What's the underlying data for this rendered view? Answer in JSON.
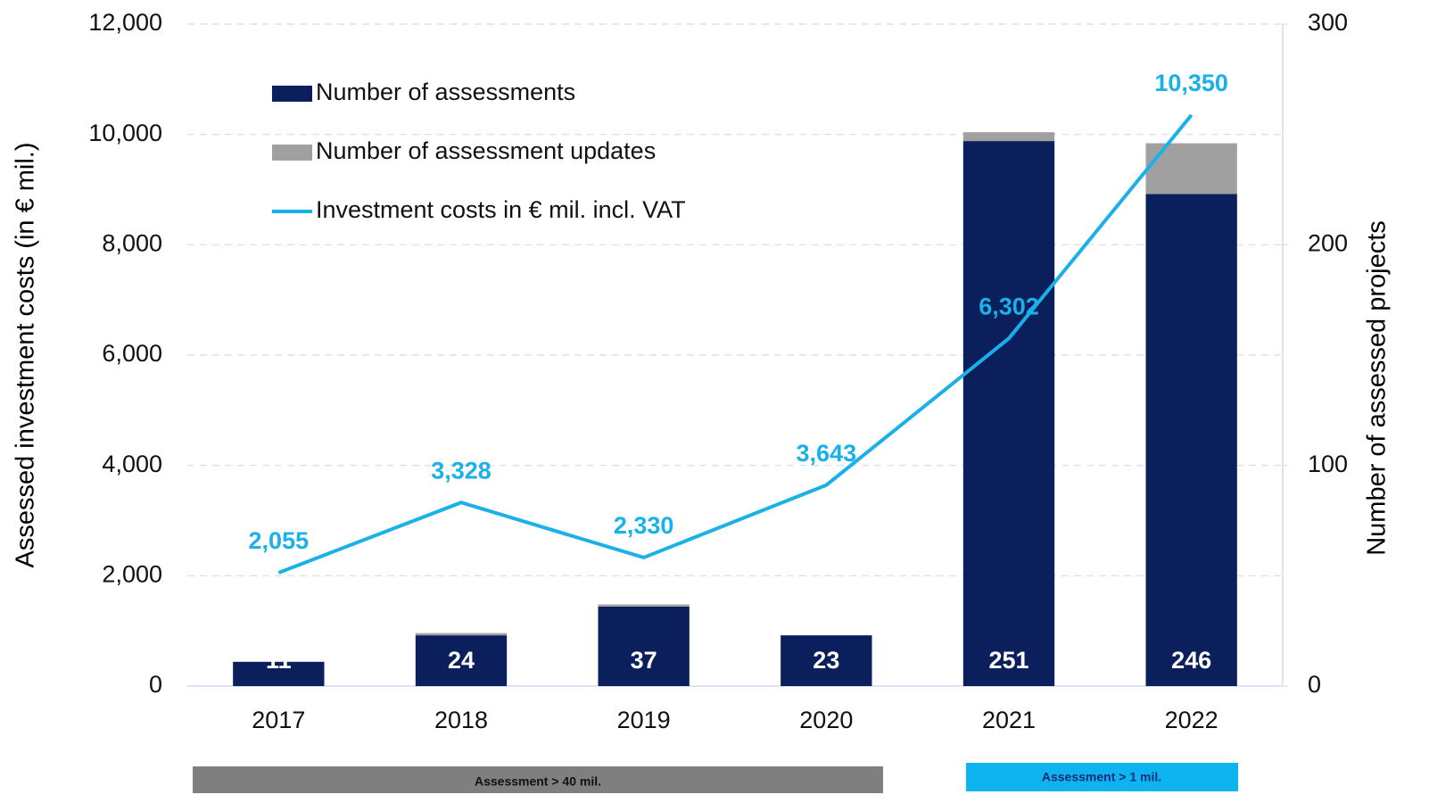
{
  "chart_data": {
    "type": "bar",
    "y_label": "Assessed investment costs (in € mil.)",
    "y2_label": "Number of assessed projects",
    "categories": [
      "2017",
      "2018",
      "2019",
      "2020",
      "2021",
      "2022"
    ],
    "series": [
      {
        "name": "Number of assessments",
        "type": "bar",
        "color": "#0b1f5c",
        "axis": "y2",
        "values": [
          11,
          23,
          36,
          23,
          247,
          223
        ]
      },
      {
        "name": "Number of assessment updates",
        "type": "bar",
        "color": "#a0a0a0",
        "axis": "y2",
        "values": [
          0,
          1,
          1,
          0,
          4,
          23
        ]
      },
      {
        "name": "Investment costs in € mil. incl. VAT",
        "type": "line",
        "color": "#1ab0e8",
        "axis": "y",
        "values": [
          2055,
          3328,
          2330,
          3643,
          6302,
          10350
        ],
        "value_labels": [
          "2,055",
          "3,328",
          "2,330",
          "3,643",
          "6,302",
          "10,350"
        ]
      }
    ],
    "totals": [
      11,
      24,
      37,
      23,
      251,
      246
    ],
    "ylim": [
      0,
      12000
    ],
    "yticks": [
      0,
      {
        "value": 2000,
        "label": "2,000"
      },
      {
        "value": 4000,
        "label": "4,000"
      },
      {
        "value": 6000,
        "label": "6,000"
      },
      {
        "value": 8000,
        "label": "8,000"
      },
      {
        "value": 10000,
        "label": "10,000"
      },
      {
        "value": 12000,
        "label": "12,000"
      }
    ],
    "y2lim": [
      0,
      300
    ],
    "y2ticks": [
      0,
      100,
      200,
      300
    ],
    "grid": true,
    "annotations": [
      "Assessment > 40 mil.",
      "Assessment > 1 mil."
    ]
  }
}
